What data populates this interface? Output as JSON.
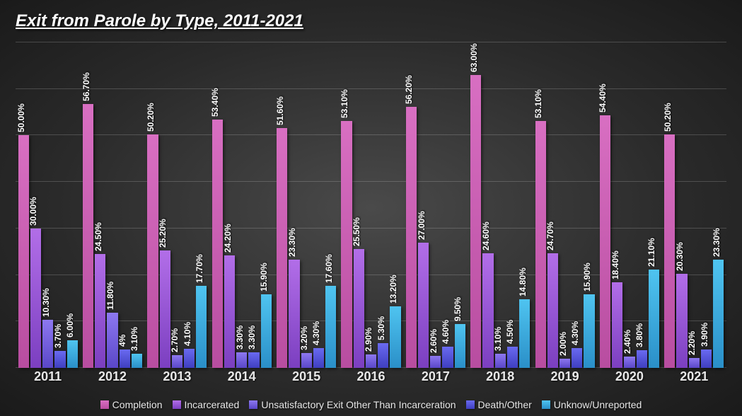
{
  "title": {
    "text": "Exit from Parole by Type, 2011-2021",
    "fontsize": 24,
    "color": "#ffffff"
  },
  "chart": {
    "type": "bar",
    "background": "radial-gradient #4a4a4a -> #1a1a1a",
    "y_axis": {
      "min": 0,
      "max": 70,
      "grid_step": 10,
      "grid_color": "rgba(255,255,255,0.18)"
    },
    "categories": [
      "2011",
      "2012",
      "2013",
      "2014",
      "2015",
      "2016",
      "2017",
      "2018",
      "2019",
      "2020",
      "2021"
    ],
    "x_label_fontsize": 18,
    "bar_label_fontsize": 12,
    "bar_label_color": "#ffffff",
    "series": [
      {
        "name": "Completion",
        "gradient": [
          "#d86fc2",
          "#b84da0"
        ],
        "labels": [
          "50.00%",
          "56.70%",
          "50.20%",
          "53.40%",
          "51.60%",
          "53.10%",
          "56.20%",
          "63.00%",
          "53.10%",
          "54.40%",
          "50.20%"
        ],
        "values": [
          50.0,
          56.7,
          50.2,
          53.4,
          51.6,
          53.1,
          56.2,
          63.0,
          53.1,
          54.4,
          50.2
        ]
      },
      {
        "name": "Incarcerated",
        "gradient": [
          "#b26ee8",
          "#7b3fc0"
        ],
        "labels": [
          "30.00%",
          "24.50%",
          "25.20%",
          "24.20%",
          "23.30%",
          "25.50%",
          "27.00%",
          "24.60%",
          "24.70%",
          "18.40%",
          "20.30%"
        ],
        "values": [
          30.0,
          24.5,
          25.2,
          24.2,
          23.3,
          25.5,
          27.0,
          24.6,
          24.7,
          18.4,
          20.3
        ]
      },
      {
        "name": "Unsatisfactory Exit Other Than Incarceration",
        "gradient": [
          "#8d78f0",
          "#5a47c8"
        ],
        "labels": [
          "10.30%",
          "11.80%",
          "2.70%",
          "3.30%",
          "3.20%",
          "2.90%",
          "2.60%",
          "3.10%",
          "2.00%",
          "2.40%",
          "2.20%"
        ],
        "values": [
          10.3,
          11.8,
          2.7,
          3.3,
          3.2,
          2.9,
          2.6,
          3.1,
          2.0,
          2.4,
          2.2
        ]
      },
      {
        "name": "Death/Other",
        "gradient": [
          "#6a6af0",
          "#3f3fc0"
        ],
        "labels": [
          "3.70%",
          "4%",
          "4.10%",
          "3.30%",
          "4.30%",
          "5.30%",
          "4.60%",
          "4.50%",
          "4.30%",
          "3.80%",
          "3.90%"
        ],
        "values": [
          3.7,
          4.0,
          4.1,
          3.3,
          4.3,
          5.3,
          4.6,
          4.5,
          4.3,
          3.8,
          3.9
        ]
      },
      {
        "name": "Unknow/Unreported",
        "gradient": [
          "#4fc4f0",
          "#2a8fc8"
        ],
        "labels": [
          "6.00%",
          "3.10%",
          "17.70%",
          "15.90%",
          "17.60%",
          "13.20%",
          "9.50%",
          "14.80%",
          "15.90%",
          "21.10%",
          "23.30%"
        ],
        "values": [
          6.0,
          3.1,
          17.7,
          15.9,
          17.6,
          13.2,
          9.5,
          14.8,
          15.9,
          21.1,
          23.3
        ]
      }
    ],
    "legend": {
      "fontsize": 14,
      "color": "#e8e8e8"
    }
  }
}
